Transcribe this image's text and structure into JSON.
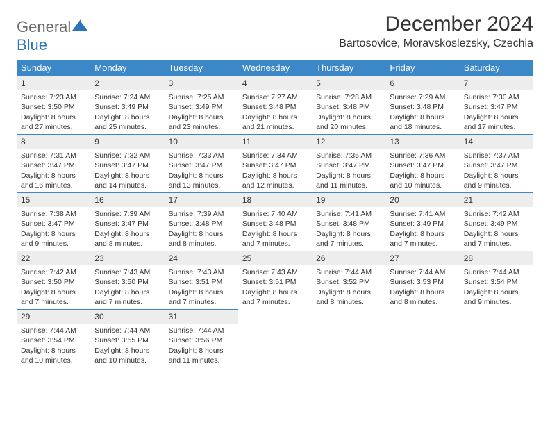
{
  "logo": {
    "text1": "General",
    "text2": "Blue"
  },
  "title": "December 2024",
  "location": "Bartosovice, Moravskoslezsky, Czechia",
  "colors": {
    "header_bg": "#3b87c8",
    "header_text": "#ffffff",
    "daynum_bg": "#ededed",
    "daynum_border": "#3b87c8",
    "logo_gray": "#6a6a6a",
    "logo_blue": "#2d74b8",
    "text": "#333333",
    "background": "#ffffff"
  },
  "weekdays": [
    "Sunday",
    "Monday",
    "Tuesday",
    "Wednesday",
    "Thursday",
    "Friday",
    "Saturday"
  ],
  "days": [
    {
      "n": "1",
      "sunrise": "7:23 AM",
      "sunset": "3:50 PM",
      "dl1": "Daylight: 8 hours",
      "dl2": "and 27 minutes."
    },
    {
      "n": "2",
      "sunrise": "7:24 AM",
      "sunset": "3:49 PM",
      "dl1": "Daylight: 8 hours",
      "dl2": "and 25 minutes."
    },
    {
      "n": "3",
      "sunrise": "7:25 AM",
      "sunset": "3:49 PM",
      "dl1": "Daylight: 8 hours",
      "dl2": "and 23 minutes."
    },
    {
      "n": "4",
      "sunrise": "7:27 AM",
      "sunset": "3:48 PM",
      "dl1": "Daylight: 8 hours",
      "dl2": "and 21 minutes."
    },
    {
      "n": "5",
      "sunrise": "7:28 AM",
      "sunset": "3:48 PM",
      "dl1": "Daylight: 8 hours",
      "dl2": "and 20 minutes."
    },
    {
      "n": "6",
      "sunrise": "7:29 AM",
      "sunset": "3:48 PM",
      "dl1": "Daylight: 8 hours",
      "dl2": "and 18 minutes."
    },
    {
      "n": "7",
      "sunrise": "7:30 AM",
      "sunset": "3:47 PM",
      "dl1": "Daylight: 8 hours",
      "dl2": "and 17 minutes."
    },
    {
      "n": "8",
      "sunrise": "7:31 AM",
      "sunset": "3:47 PM",
      "dl1": "Daylight: 8 hours",
      "dl2": "and 16 minutes."
    },
    {
      "n": "9",
      "sunrise": "7:32 AM",
      "sunset": "3:47 PM",
      "dl1": "Daylight: 8 hours",
      "dl2": "and 14 minutes."
    },
    {
      "n": "10",
      "sunrise": "7:33 AM",
      "sunset": "3:47 PM",
      "dl1": "Daylight: 8 hours",
      "dl2": "and 13 minutes."
    },
    {
      "n": "11",
      "sunrise": "7:34 AM",
      "sunset": "3:47 PM",
      "dl1": "Daylight: 8 hours",
      "dl2": "and 12 minutes."
    },
    {
      "n": "12",
      "sunrise": "7:35 AM",
      "sunset": "3:47 PM",
      "dl1": "Daylight: 8 hours",
      "dl2": "and 11 minutes."
    },
    {
      "n": "13",
      "sunrise": "7:36 AM",
      "sunset": "3:47 PM",
      "dl1": "Daylight: 8 hours",
      "dl2": "and 10 minutes."
    },
    {
      "n": "14",
      "sunrise": "7:37 AM",
      "sunset": "3:47 PM",
      "dl1": "Daylight: 8 hours",
      "dl2": "and 9 minutes."
    },
    {
      "n": "15",
      "sunrise": "7:38 AM",
      "sunset": "3:47 PM",
      "dl1": "Daylight: 8 hours",
      "dl2": "and 9 minutes."
    },
    {
      "n": "16",
      "sunrise": "7:39 AM",
      "sunset": "3:47 PM",
      "dl1": "Daylight: 8 hours",
      "dl2": "and 8 minutes."
    },
    {
      "n": "17",
      "sunrise": "7:39 AM",
      "sunset": "3:48 PM",
      "dl1": "Daylight: 8 hours",
      "dl2": "and 8 minutes."
    },
    {
      "n": "18",
      "sunrise": "7:40 AM",
      "sunset": "3:48 PM",
      "dl1": "Daylight: 8 hours",
      "dl2": "and 7 minutes."
    },
    {
      "n": "19",
      "sunrise": "7:41 AM",
      "sunset": "3:48 PM",
      "dl1": "Daylight: 8 hours",
      "dl2": "and 7 minutes."
    },
    {
      "n": "20",
      "sunrise": "7:41 AM",
      "sunset": "3:49 PM",
      "dl1": "Daylight: 8 hours",
      "dl2": "and 7 minutes."
    },
    {
      "n": "21",
      "sunrise": "7:42 AM",
      "sunset": "3:49 PM",
      "dl1": "Daylight: 8 hours",
      "dl2": "and 7 minutes."
    },
    {
      "n": "22",
      "sunrise": "7:42 AM",
      "sunset": "3:50 PM",
      "dl1": "Daylight: 8 hours",
      "dl2": "and 7 minutes."
    },
    {
      "n": "23",
      "sunrise": "7:43 AM",
      "sunset": "3:50 PM",
      "dl1": "Daylight: 8 hours",
      "dl2": "and 7 minutes."
    },
    {
      "n": "24",
      "sunrise": "7:43 AM",
      "sunset": "3:51 PM",
      "dl1": "Daylight: 8 hours",
      "dl2": "and 7 minutes."
    },
    {
      "n": "25",
      "sunrise": "7:43 AM",
      "sunset": "3:51 PM",
      "dl1": "Daylight: 8 hours",
      "dl2": "and 7 minutes."
    },
    {
      "n": "26",
      "sunrise": "7:44 AM",
      "sunset": "3:52 PM",
      "dl1": "Daylight: 8 hours",
      "dl2": "and 8 minutes."
    },
    {
      "n": "27",
      "sunrise": "7:44 AM",
      "sunset": "3:53 PM",
      "dl1": "Daylight: 8 hours",
      "dl2": "and 8 minutes."
    },
    {
      "n": "28",
      "sunrise": "7:44 AM",
      "sunset": "3:54 PM",
      "dl1": "Daylight: 8 hours",
      "dl2": "and 9 minutes."
    },
    {
      "n": "29",
      "sunrise": "7:44 AM",
      "sunset": "3:54 PM",
      "dl1": "Daylight: 8 hours",
      "dl2": "and 10 minutes."
    },
    {
      "n": "30",
      "sunrise": "7:44 AM",
      "sunset": "3:55 PM",
      "dl1": "Daylight: 8 hours",
      "dl2": "and 10 minutes."
    },
    {
      "n": "31",
      "sunrise": "7:44 AM",
      "sunset": "3:56 PM",
      "dl1": "Daylight: 8 hours",
      "dl2": "and 11 minutes."
    }
  ]
}
